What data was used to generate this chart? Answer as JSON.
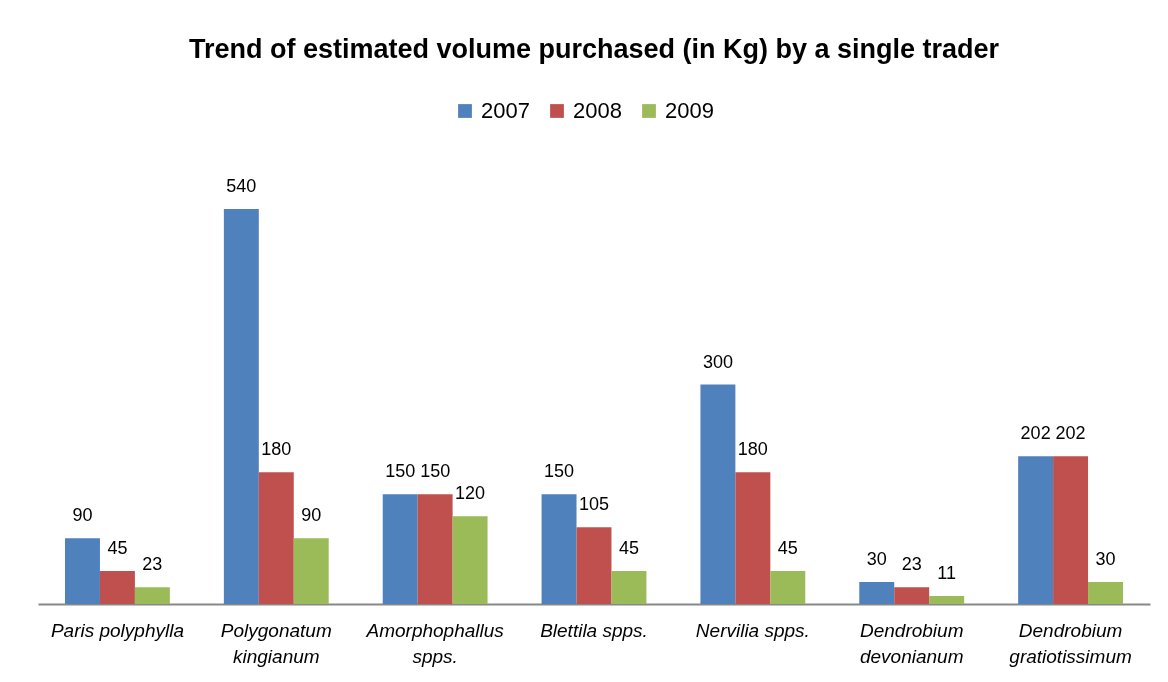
{
  "chart_data": {
    "type": "bar",
    "title": "Trend of estimated volume purchased (in Kg) by a single trader",
    "categories": [
      "Paris polyphylla",
      "Polygonatum kingianum",
      "Amorphophallus spps.",
      "Blettila spps.",
      "Nervilia spps.",
      "Dendrobium devonianum",
      "Dendrobium gratiotissimum"
    ],
    "series": [
      {
        "name": "2007",
        "color": "#4f81bd",
        "values": [
          90,
          540,
          150,
          150,
          300,
          30,
          202
        ]
      },
      {
        "name": "2008",
        "color": "#c0504d",
        "values": [
          45,
          180,
          150,
          105,
          180,
          23,
          202
        ]
      },
      {
        "name": "2009",
        "color": "#9bbb59",
        "values": [
          23,
          90,
          120,
          45,
          45,
          11,
          30
        ]
      }
    ],
    "data_labels": true,
    "legend": "top"
  }
}
